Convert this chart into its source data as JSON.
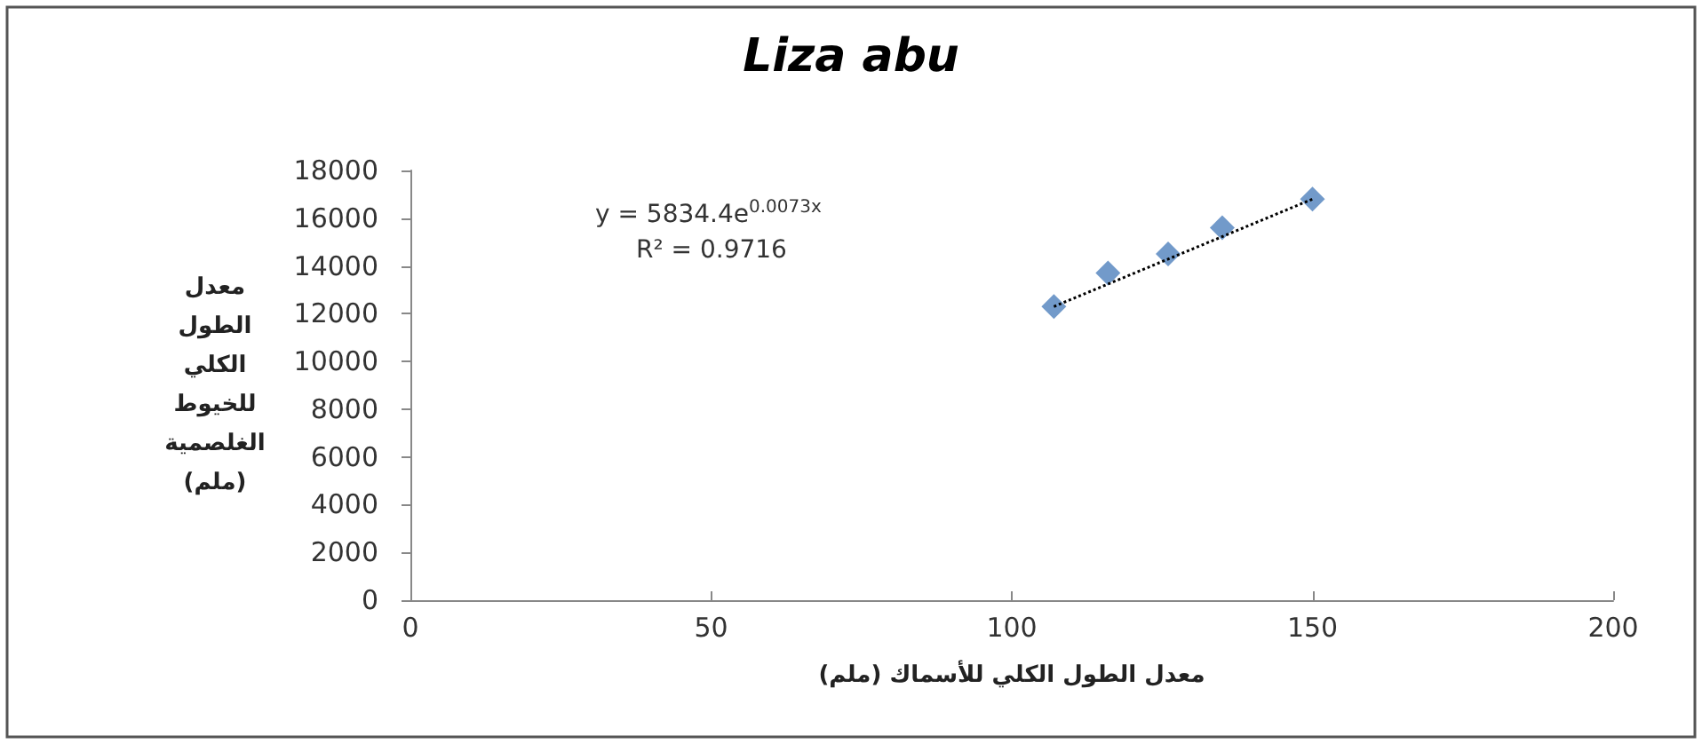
{
  "chart_data": {
    "type": "scatter",
    "title": "Liza abu",
    "xlabel": "معدل الطول الكلي للأسماك (ملم)",
    "ylabel": "معدل الطول الكلي للخيوط الغلصمية (ملم)",
    "series": [
      {
        "color": "#4f81bd",
        "marker": "diamond",
        "x": [
          107,
          116,
          126,
          135,
          150
        ],
        "values": [
          12300,
          13700,
          14500,
          15600,
          16800
        ]
      },
      {
        "type": "line",
        "color": "#000000",
        "line_style": "dotted",
        "marker": "none",
        "x": [
          107,
          150
        ],
        "values": [
          12300,
          16800
        ]
      }
    ],
    "annotations": [
      "y = 5834.4e$^{0.0073x}$",
      "R² = 0.9716"
    ],
    "xlim": [
      0,
      200
    ],
    "xticks": [
      0,
      50,
      100,
      150,
      200
    ],
    "ylim": [
      0,
      18000
    ],
    "yticks": [
      0,
      2000,
      4000,
      6000,
      8000,
      10000,
      12000,
      14000,
      16000,
      18000
    ],
    "grid": false
  }
}
